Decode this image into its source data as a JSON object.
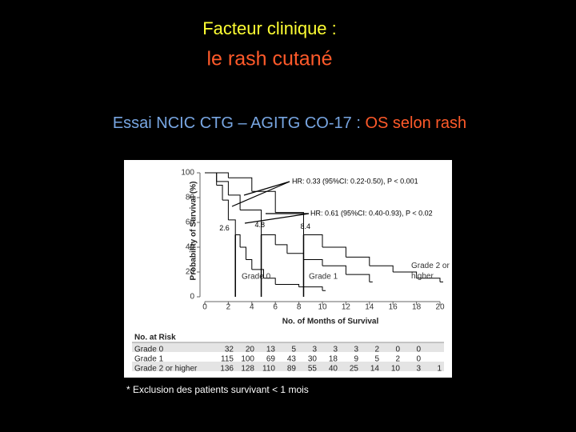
{
  "slide": {
    "title": "Facteur clinique :",
    "subtitle": "le rash cutané",
    "heading": [
      "Essai NCIC CTG – AGITG CO-17 : ",
      "OS selon rash"
    ],
    "footnote": "* Exclusion des patients survivant < 1 mois"
  },
  "chart_data": {
    "type": "step",
    "xlabel": "No. of Months of Survival",
    "ylabel": "Probability of Survival (%)",
    "xlim": [
      0,
      20
    ],
    "xticks": [
      0,
      2,
      4,
      6,
      8,
      10,
      12,
      14,
      16,
      18,
      20
    ],
    "ylim": [
      0,
      100
    ],
    "yticks": [
      0,
      20,
      40,
      60,
      80,
      100
    ],
    "series": [
      {
        "name": "Grade 0",
        "color": "#000000",
        "x": [
          0,
          1,
          1.5,
          2,
          2.6,
          3,
          3.5,
          4,
          5,
          6,
          8,
          10
        ],
        "values": [
          100,
          90,
          78,
          62,
          50,
          40,
          30,
          22,
          15,
          10,
          8,
          5
        ]
      },
      {
        "name": "Grade 1",
        "color": "#000000",
        "x": [
          0,
          1,
          2,
          3,
          4.8,
          6,
          7,
          8.4,
          10,
          12,
          14
        ],
        "values": [
          100,
          93,
          82,
          70,
          50,
          42,
          35,
          30,
          25,
          18,
          12
        ]
      },
      {
        "name": "Grade 2 or higher",
        "color": "#000000",
        "x": [
          0,
          2,
          4,
          6,
          8.4,
          10,
          12,
          14,
          16,
          18,
          20
        ],
        "values": [
          100,
          96,
          85,
          68,
          50,
          40,
          32,
          25,
          20,
          15,
          12
        ]
      }
    ],
    "medians": [
      2.6,
      4.8,
      8.4
    ],
    "annotations": [
      "HR: 0.33 (95%CI: 0.22-0.50), P < 0.001",
      "HR: 0.61 (95%CI: 0.40-0.93), P < 0.02"
    ],
    "risk_table": {
      "title": "No. at Risk",
      "rows": [
        [
          32,
          20,
          13,
          5,
          3,
          3,
          3,
          2,
          0,
          0
        ],
        [
          115,
          100,
          69,
          43,
          30,
          18,
          9,
          5,
          2,
          0
        ],
        [
          136,
          128,
          110,
          89,
          55,
          40,
          25,
          14,
          10,
          3,
          1
        ]
      ]
    }
  }
}
